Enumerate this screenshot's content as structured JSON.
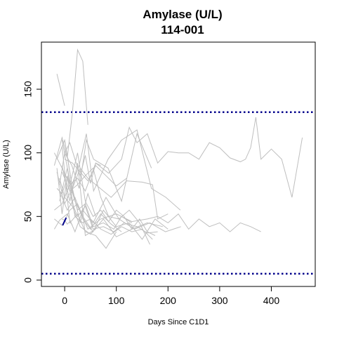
{
  "chart_data": {
    "type": "line",
    "title": "Amylase (U/L)",
    "subtitle": "114-001",
    "xlabel": "Days Since C1D1",
    "ylabel": "Amylase (U/L)",
    "xlim": [
      -45,
      485
    ],
    "ylim": [
      -5,
      187
    ],
    "x_ticks": [
      0,
      100,
      200,
      300,
      400
    ],
    "y_ticks": [
      0,
      50,
      100,
      150
    ],
    "reference_lines": [
      {
        "y": 132,
        "color": "#00008b",
        "style": "dotted"
      },
      {
        "y": 5,
        "color": "#00008b",
        "style": "dotted"
      }
    ],
    "colors": {
      "background_series": "#bebebe",
      "highlight_series": "#00008b",
      "reference": "#00008b"
    },
    "series": [
      {
        "x": [
          -15,
          0
        ],
        "y": [
          162,
          137
        ]
      },
      {
        "x": [
          -20,
          -5,
          5,
          15,
          25,
          35,
          45
        ],
        "y": [
          90,
          112,
          96,
          132,
          181,
          172,
          122
        ]
      },
      {
        "x": [
          -15,
          0,
          14,
          28,
          42,
          56,
          84,
          110,
          140,
          168,
          196,
          224
        ],
        "y": [
          95,
          110,
          75,
          90,
          115,
          70,
          95,
          110,
          118,
          72,
          65,
          55
        ]
      },
      {
        "x": [
          -10,
          0,
          14,
          28,
          42,
          56,
          84,
          110,
          140,
          168
        ],
        "y": [
          75,
          100,
          90,
          72,
          110,
          95,
          88,
          62,
          115,
          88
        ]
      },
      {
        "x": [
          -20,
          -5,
          10,
          25,
          40,
          60,
          85,
          110,
          125,
          140,
          160,
          180,
          200,
          220,
          240,
          260,
          280,
          300,
          320,
          340,
          350,
          360,
          370,
          380,
          400,
          420,
          440,
          460
        ],
        "y": [
          55,
          60,
          75,
          80,
          70,
          92,
          84,
          95,
          120,
          108,
          115,
          92,
          101,
          100,
          100,
          95,
          108,
          104,
          96,
          93,
          95,
          104,
          128,
          95,
          103,
          95,
          65,
          112
        ]
      },
      {
        "x": [
          -15,
          0,
          15,
          30,
          45,
          60,
          90,
          120,
          150,
          170,
          180,
          200
        ],
        "y": [
          85,
          60,
          72,
          88,
          80,
          75,
          65,
          78,
          77,
          75,
          48,
          52
        ]
      },
      {
        "x": [
          -20,
          -5,
          10,
          25,
          45,
          70,
          100,
          130,
          160,
          180,
          200,
          220,
          240,
          260,
          280,
          300,
          320,
          340,
          360,
          380
        ],
        "y": [
          48,
          43,
          55,
          60,
          40,
          48,
          52,
          46,
          48,
          50,
          45,
          52,
          40,
          48,
          42,
          45,
          38,
          45,
          42,
          38
        ]
      },
      {
        "x": [
          -10,
          0,
          15,
          30,
          50,
          75,
          100,
          130,
          160,
          190
        ],
        "y": [
          80,
          65,
          58,
          42,
          36,
          48,
          34,
          40,
          45,
          42
        ]
      },
      {
        "x": [
          -20,
          -10,
          5,
          20,
          35,
          55,
          80,
          105,
          135,
          165,
          195,
          225
        ],
        "y": [
          40,
          47,
          52,
          38,
          55,
          45,
          65,
          48,
          40,
          45,
          38,
          42
        ]
      },
      {
        "x": [
          -5,
          10,
          25,
          40,
          60,
          80,
          100
        ],
        "y": [
          105,
          45,
          52,
          38,
          35,
          25,
          38
        ]
      },
      {
        "x": [
          -20,
          -5,
          10,
          25,
          40,
          55,
          70,
          85,
          100,
          115,
          130,
          145,
          160,
          175
        ],
        "y": [
          100,
          88,
          75,
          100,
          62,
          50,
          55,
          46,
          55,
          50,
          40,
          48,
          38,
          35
        ]
      },
      {
        "x": [
          -15,
          -5,
          5,
          15,
          25,
          40,
          55,
          75,
          95,
          115,
          140,
          160,
          180
        ],
        "y": [
          72,
          68,
          80,
          60,
          50,
          58,
          40,
          42,
          38,
          45,
          42,
          37,
          38
        ]
      },
      {
        "x": [
          -10,
          5,
          20,
          35,
          50,
          70,
          90,
          110,
          130,
          150,
          170
        ],
        "y": [
          62,
          88,
          50,
          45,
          48,
          40,
          36,
          42,
          38,
          40,
          32
        ]
      },
      {
        "x": [
          -5,
          10,
          25,
          40,
          55,
          70,
          85,
          105,
          125,
          145,
          165
        ],
        "y": [
          85,
          70,
          75,
          82,
          88,
          65,
          50,
          48,
          55,
          45,
          28
        ]
      },
      {
        "x": [
          0,
          15,
          30,
          45,
          60,
          80,
          100,
          120
        ],
        "y": [
          95,
          92,
          85,
          78,
          90,
          82,
          74,
          80
        ]
      },
      {
        "x": [
          -5,
          10,
          25,
          40,
          55,
          75,
          95,
          110,
          130
        ],
        "y": [
          110,
          78,
          55,
          60,
          42,
          45,
          40,
          50,
          45
        ]
      },
      {
        "x": [
          -10,
          5,
          20,
          35,
          50,
          70,
          90,
          110
        ],
        "y": [
          70,
          55,
          65,
          48,
          40,
          52,
          44,
          38
        ]
      },
      {
        "x": [
          -5,
          10,
          25,
          40,
          60
        ],
        "y": [
          90,
          62,
          92,
          35,
          40
        ]
      },
      {
        "x": [
          0,
          15,
          30,
          45,
          60
        ],
        "y": [
          110,
          72,
          45,
          68,
          50
        ]
      },
      {
        "x": [
          -15,
          -5,
          5,
          20,
          35,
          55,
          75,
          100,
          125,
          150,
          175,
          200
        ],
        "y": [
          88,
          52,
          82,
          62,
          50,
          38,
          55,
          42,
          45,
          32,
          48,
          40
        ]
      },
      {
        "x": [
          -5,
          0,
          5,
          10,
          15
        ],
        "y": [
          48,
          47,
          44,
          46,
          43
        ]
      },
      {
        "x": [
          0,
          10,
          20,
          30,
          40,
          50,
          60,
          70
        ],
        "y": [
          100,
          108,
          95,
          82,
          98,
          76,
          92,
          90
        ]
      }
    ],
    "highlight_series": {
      "x": [
        -4,
        3
      ],
      "y": [
        43,
        49
      ]
    }
  }
}
